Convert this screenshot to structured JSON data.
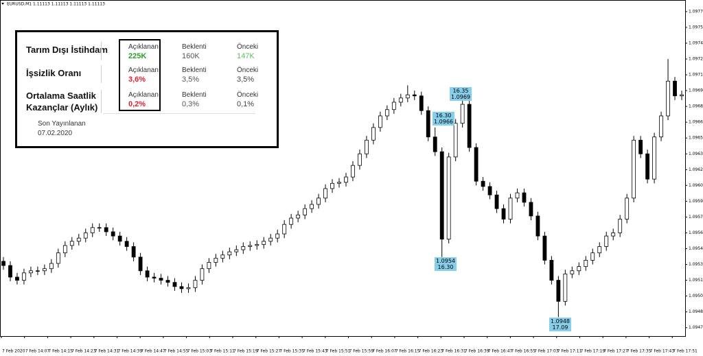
{
  "symbol_header": "EURUSD,M1  1.11113 1.11113 1.11113 1.11113",
  "info_panel": {
    "rows": [
      {
        "label": "Tarım Dışı İstihdam",
        "actual_label": "Açıklanan",
        "actual": "225K",
        "actual_color": "#2e9b2e",
        "forecast_label": "Beklenti",
        "forecast": "160K",
        "previous_label": "Önceki",
        "previous": "147K",
        "previous_color": "#5cc05c"
      },
      {
        "label": "İşsizlik Oranı",
        "actual_label": "Açıklanan",
        "actual": "3,6%",
        "actual_color": "#e0202a",
        "forecast_label": "Beklenti",
        "forecast": "3,5%",
        "previous_label": "Önceki",
        "previous": "3,5%",
        "previous_color": "#444444"
      },
      {
        "label": "Ortalama Saatlik Kazançlar (Aylık)",
        "actual_label": "Açıklanan",
        "actual": "0,2%",
        "actual_color": "#e0202a",
        "forecast_label": "Beklenti",
        "forecast": "0,3%",
        "previous_label": "Önceki",
        "previous": "0,1%",
        "previous_color": "#444444"
      }
    ],
    "footer_label": "Son Yayınlanan",
    "footer_date": "07.02.2020"
  },
  "chart_data": {
    "type": "candlestick",
    "up_color": "#ffffff",
    "down_color": "#000000",
    "open": [
      1.09533,
      1.09529,
      1.09518,
      1.09515,
      1.09522,
      1.09524,
      1.09524,
      1.09526,
      1.09531,
      1.09541,
      1.09548,
      1.09552,
      1.09555,
      1.0956,
      1.09565,
      1.09565,
      1.09561,
      1.09557,
      1.09552,
      1.09547,
      1.09537,
      1.09524,
      1.09518,
      1.09517,
      1.09515,
      1.09513,
      1.09509,
      1.09507,
      1.09508,
      1.09515,
      1.09526,
      1.09532,
      1.09536,
      1.09539,
      1.09542,
      1.09544,
      1.09547,
      1.09548,
      1.09549,
      1.09552,
      1.09555,
      1.09559,
      1.09568,
      1.09574,
      1.09577,
      1.09583,
      1.09587,
      1.09593,
      1.09602,
      1.09607,
      1.09608,
      1.09613,
      1.09624,
      1.09635,
      1.09648,
      1.0966,
      1.09671,
      1.09677,
      1.09684,
      1.09688,
      1.09691,
      1.0969,
      1.09676,
      1.09651,
      1.09637,
      1.09554,
      1.09632,
      1.09664,
      1.09682,
      1.09641,
      1.09609,
      1.09604,
      1.09596,
      1.09583,
      1.09573,
      1.09593,
      1.09598,
      1.09589,
      1.09576,
      1.09557,
      1.09534,
      1.09515,
      1.09495,
      1.09521,
      1.09524,
      1.09528,
      1.09534,
      1.09541,
      1.09547,
      1.09557,
      1.0956,
      1.09573,
      1.09593,
      1.09648,
      1.09635,
      1.09611,
      1.09651,
      1.09671,
      1.09704,
      1.0969
    ],
    "high": [
      1.09537,
      1.09533,
      1.09522,
      1.09526,
      1.09528,
      1.09528,
      1.0953,
      1.09535,
      1.09545,
      1.09552,
      1.09556,
      1.09559,
      1.09564,
      1.09569,
      1.09569,
      1.09569,
      1.09565,
      1.09561,
      1.09556,
      1.09551,
      1.09541,
      1.09528,
      1.09522,
      1.09521,
      1.09519,
      1.09517,
      1.09513,
      1.09512,
      1.09519,
      1.0953,
      1.09536,
      1.0954,
      1.09543,
      1.09546,
      1.09548,
      1.09551,
      1.09552,
      1.09553,
      1.09556,
      1.09559,
      1.09563,
      1.09572,
      1.09578,
      1.09581,
      1.09587,
      1.09591,
      1.09597,
      1.09606,
      1.09611,
      1.09612,
      1.09617,
      1.09628,
      1.09639,
      1.09652,
      1.09664,
      1.09675,
      1.09681,
      1.09688,
      1.09692,
      1.097,
      1.09695,
      1.09694,
      1.0968,
      1.0966,
      1.09641,
      1.09636,
      1.09668,
      1.0969,
      1.09686,
      1.09645,
      1.09613,
      1.09608,
      1.096,
      1.09587,
      1.09597,
      1.09602,
      1.09602,
      1.09593,
      1.0958,
      1.09561,
      1.09538,
      1.09519,
      1.09525,
      1.09528,
      1.09532,
      1.09538,
      1.09545,
      1.09551,
      1.09561,
      1.09564,
      1.09577,
      1.09597,
      1.09652,
      1.09652,
      1.09639,
      1.09655,
      1.09675,
      1.09725,
      1.09708,
      1.09695
    ],
    "low": [
      1.09525,
      1.09514,
      1.09511,
      1.09511,
      1.09518,
      1.0952,
      1.0952,
      1.09522,
      1.09527,
      1.09537,
      1.09544,
      1.09548,
      1.09551,
      1.09556,
      1.09561,
      1.09557,
      1.09553,
      1.09548,
      1.09543,
      1.09533,
      1.0952,
      1.09514,
      1.09513,
      1.09511,
      1.09509,
      1.09505,
      1.09503,
      1.09503,
      1.09504,
      1.09511,
      1.09522,
      1.09528,
      1.09532,
      1.09535,
      1.09538,
      1.0954,
      1.09543,
      1.09544,
      1.09545,
      1.09548,
      1.09551,
      1.09555,
      1.09564,
      1.0957,
      1.09573,
      1.09579,
      1.09583,
      1.09589,
      1.09598,
      1.09603,
      1.09604,
      1.09609,
      1.0962,
      1.09631,
      1.09644,
      1.09656,
      1.09667,
      1.09673,
      1.0968,
      1.09684,
      1.09686,
      1.09672,
      1.09647,
      1.09633,
      1.09537,
      1.0955,
      1.09628,
      1.0966,
      1.09637,
      1.09605,
      1.096,
      1.09592,
      1.09579,
      1.09569,
      1.09569,
      1.09589,
      1.09585,
      1.09572,
      1.09553,
      1.0953,
      1.09511,
      1.0948,
      1.09491,
      1.09517,
      1.0952,
      1.09524,
      1.0953,
      1.09537,
      1.09543,
      1.09553,
      1.09556,
      1.09569,
      1.09589,
      1.09631,
      1.09607,
      1.09607,
      1.09647,
      1.09667,
      1.09686,
      1.09686
    ],
    "close": [
      1.09529,
      1.09518,
      1.09515,
      1.09522,
      1.09524,
      1.09524,
      1.09526,
      1.09531,
      1.09541,
      1.09548,
      1.09552,
      1.09555,
      1.0956,
      1.09565,
      1.09565,
      1.09561,
      1.09557,
      1.09552,
      1.09547,
      1.09537,
      1.09524,
      1.09518,
      1.09517,
      1.09515,
      1.09513,
      1.09509,
      1.09507,
      1.09508,
      1.09515,
      1.09526,
      1.09532,
      1.09536,
      1.09539,
      1.09542,
      1.09544,
      1.09547,
      1.09548,
      1.09549,
      1.09552,
      1.09555,
      1.09559,
      1.09568,
      1.09574,
      1.09577,
      1.09583,
      1.09587,
      1.09593,
      1.09602,
      1.09607,
      1.09608,
      1.09613,
      1.09624,
      1.09635,
      1.09648,
      1.0966,
      1.09671,
      1.09677,
      1.09684,
      1.09688,
      1.09691,
      1.0969,
      1.09676,
      1.09651,
      1.09637,
      1.09554,
      1.09632,
      1.09664,
      1.09682,
      1.09641,
      1.09609,
      1.09604,
      1.09596,
      1.09583,
      1.09573,
      1.09593,
      1.09598,
      1.09589,
      1.09576,
      1.09557,
      1.09534,
      1.09515,
      1.09495,
      1.09521,
      1.09524,
      1.09528,
      1.09534,
      1.09541,
      1.09547,
      1.09557,
      1.0956,
      1.09573,
      1.09593,
      1.09648,
      1.09635,
      1.09611,
      1.09651,
      1.09671,
      1.09704,
      1.0969,
      1.09691
    ],
    "x_labels": [
      "7 Feb 2020",
      "7 Feb 14:07",
      "7 Feb 14:15",
      "7 Feb 14:23",
      "7 Feb 14:31",
      "7 Feb 14:39",
      "7 Feb 14:47",
      "7 Feb 14:55",
      "7 Feb 15:03",
      "7 Feb 15:11",
      "7 Feb 15:19",
      "7 Feb 15:27",
      "7 Feb 15:35",
      "7 Feb 15:43",
      "7 Feb 15:51",
      "7 Feb 15:59",
      "7 Feb 16:07",
      "7 Feb 16:15",
      "7 Feb 16:23",
      "7 Feb 16:31",
      "7 Feb 16:39",
      "7 Feb 16:47",
      "7 Feb 16:55",
      "7 Feb 17:03",
      "7 Feb 17:11",
      "7 Feb 17:19",
      "7 Feb 17:27",
      "7 Feb 17:35",
      "7 Feb 17:43",
      "7 Feb 17:51"
    ],
    "ylim": [
      1.09462,
      1.09781
    ],
    "yticks": [
      {
        "value": 1.0947,
        "label": "1.09470"
      },
      {
        "value": 1.09485,
        "label": "1.09485"
      },
      {
        "value": 1.095,
        "label": "1.09500"
      },
      {
        "value": 1.09515,
        "label": "1.09515"
      },
      {
        "value": 1.0953,
        "label": "1.09530"
      },
      {
        "value": 1.09545,
        "label": "1.09545"
      },
      {
        "value": 1.0956,
        "label": "1.09560"
      },
      {
        "value": 1.09575,
        "label": "1.09575"
      },
      {
        "value": 1.0959,
        "label": "1.09590"
      },
      {
        "value": 1.09605,
        "label": "1.09605"
      },
      {
        "value": 1.0962,
        "label": "1.09620"
      },
      {
        "value": 1.09635,
        "label": "1.09635"
      },
      {
        "value": 1.0965,
        "label": "1.09650"
      },
      {
        "value": 1.09665,
        "label": "1.09665"
      },
      {
        "value": 1.0968,
        "label": "1.09680"
      },
      {
        "value": 1.09695,
        "label": "1.09695"
      },
      {
        "value": 1.0971,
        "label": "1.09710"
      },
      {
        "value": 1.09725,
        "label": "1.09725"
      },
      {
        "value": 1.0974,
        "label": "1.09740"
      },
      {
        "value": 1.09755,
        "label": "1.09755"
      },
      {
        "value": 1.0977,
        "label": "1.09770"
      }
    ],
    "annotations": [
      {
        "lines": [
          "16.30",
          "1.0966"
        ]
      },
      {
        "lines": [
          "16.35",
          "1.0969"
        ]
      },
      {
        "lines": [
          "1.0954",
          "16.30"
        ]
      },
      {
        "lines": [
          "1.0948",
          "17.09"
        ]
      }
    ]
  }
}
